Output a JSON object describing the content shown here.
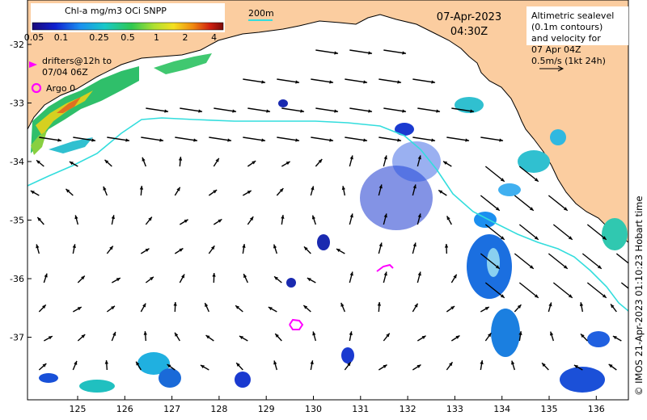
{
  "map": {
    "date": "07-Apr-2023",
    "time": "04:30Z",
    "credit": "© IMOS 21-Apr-2023 01:10:23 Hobart time",
    "scale_bar_label": "200m",
    "lon_ticks": [
      "125",
      "126",
      "127",
      "128",
      "129",
      "130",
      "131",
      "132",
      "133",
      "134",
      "135",
      "136"
    ],
    "lat_ticks": [
      "-32",
      "-33",
      "-34",
      "-35",
      "-36",
      "-37"
    ],
    "land_color": "#fbcda0",
    "contour_color": "#33dddd"
  },
  "colorbar": {
    "title": "Chl-a mg/m3 OCi SNPP",
    "ticks": [
      "0.05",
      "0.1",
      "0.25",
      "0.5",
      "1",
      "2",
      "4"
    ],
    "scale": "log",
    "range": [
      0.05,
      5
    ]
  },
  "legend": {
    "drifters": [
      "drifters@12h to",
      "07/04 06Z"
    ],
    "argo": "Argo 0",
    "velocity": [
      "Altimetric sealevel",
      "(0.1m contours)",
      "and velocity for",
      "07 Apr 04Z",
      "0.5m/s (1kt 24h)"
    ],
    "drifter_color": "#ff00ff",
    "arrow_color": "#000000"
  }
}
